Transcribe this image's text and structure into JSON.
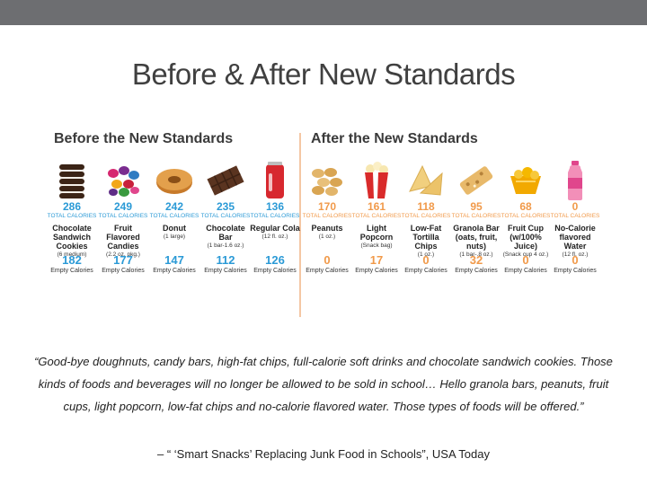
{
  "slide": {
    "title": "Before & After New Standards",
    "quote": "“Good-bye doughnuts, candy bars, high-fat chips, full-calorie soft drinks and chocolate sandwich cookies. Those kinds of foods and beverages will no longer be allowed to be sold in school… Hello granola bars, peanuts, fruit cups, light popcorn, low-fat chips and no-calorie flavored water. Those types of foods will be offered.”",
    "attribution": "– “ ‘Smart Snacks’ Replacing Junk Food in Schools”, USA Today"
  },
  "infographic": {
    "before_heading": "Before the New Standards",
    "after_heading": "After the New Standards",
    "total_calories_label": "TOTAL CALORIES",
    "empty_calories_label": "Empty Calories",
    "colors": {
      "before": "#2b9ad6",
      "after": "#f19a4a"
    },
    "before": [
      {
        "icon": "cookie-stack-icon",
        "calories": "286",
        "name": "Chocolate Sandwich Cookies",
        "serving": "(6 medium)",
        "empty": "182"
      },
      {
        "icon": "candy-icon",
        "calories": "249",
        "name": "Fruit Flavored Candies",
        "serving": "(2.2 oz. pkg.)",
        "empty": "177"
      },
      {
        "icon": "donut-icon",
        "calories": "242",
        "name": "Donut",
        "serving": "(1 large)",
        "empty": "147"
      },
      {
        "icon": "chocolate-bar-icon",
        "calories": "235",
        "name": "Chocolate Bar",
        "serving": "(1 bar-1.6 oz.)",
        "empty": "112"
      },
      {
        "icon": "cola-can-icon",
        "calories": "136",
        "name": "Regular Cola",
        "serving": "(12 fl. oz.)",
        "empty": "126"
      }
    ],
    "after": [
      {
        "icon": "peanuts-icon",
        "calories": "170",
        "name": "Peanuts",
        "serving": "(1 oz.)",
        "empty": "0"
      },
      {
        "icon": "popcorn-icon",
        "calories": "161",
        "name": "Light Popcorn",
        "serving": "(Snack bag)",
        "empty": "17"
      },
      {
        "icon": "tortilla-chips-icon",
        "calories": "118",
        "name": "Low-Fat Tortilla Chips",
        "serving": "(1 oz.)",
        "empty": "0"
      },
      {
        "icon": "granola-bar-icon",
        "calories": "95",
        "name": "Granola Bar (oats, fruit, nuts)",
        "serving": "(1 bar-.8 oz.)",
        "empty": "32"
      },
      {
        "icon": "fruit-cup-icon",
        "calories": "68",
        "name": "Fruit Cup (w/100% Juice)",
        "serving": "(Snack cup 4 oz.)",
        "empty": "0"
      },
      {
        "icon": "water-bottle-icon",
        "calories": "0",
        "name": "No-Calorie flavored Water",
        "serving": "(12 fl. oz.)",
        "empty": "0"
      }
    ]
  }
}
